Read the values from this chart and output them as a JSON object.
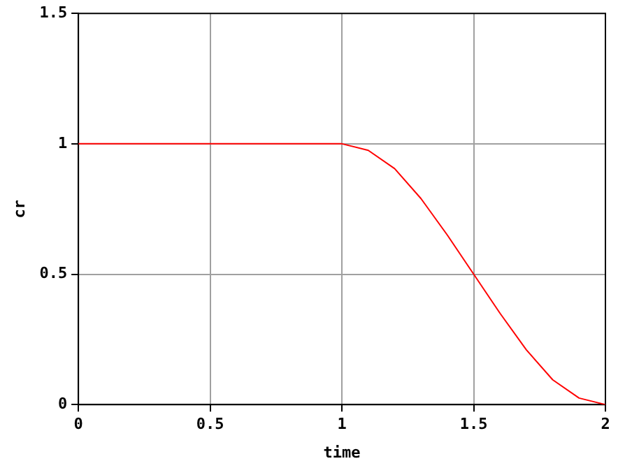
{
  "chart_data": {
    "type": "line",
    "xlabel": "time",
    "ylabel": "cr",
    "x": [
      0,
      0.5,
      1,
      1.1,
      1.2,
      1.3,
      1.4,
      1.5,
      1.6,
      1.7,
      1.8,
      1.9,
      2
    ],
    "series": [
      {
        "color": "#ff0000",
        "values": [
          1,
          1,
          1,
          0.975,
          0.905,
          0.79,
          0.65,
          0.5,
          0.35,
          0.21,
          0.095,
          0.025,
          0
        ]
      }
    ],
    "xlim": [
      0,
      2
    ],
    "xticks": [
      0,
      0.5,
      1,
      1.5,
      2
    ],
    "ylim": [
      0,
      1.5
    ],
    "yticks": [
      0,
      0.5,
      1,
      1.5
    ],
    "grid": true,
    "legend": false,
    "marker": "none"
  }
}
